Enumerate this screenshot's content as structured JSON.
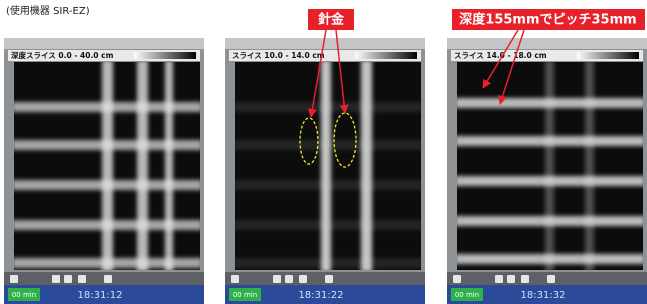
{
  "caption": "(使用機器 SIR-EZ)",
  "labels": {
    "wire": "針金",
    "pitch": "深度155mmでピッチ35mm"
  },
  "panels": [
    {
      "slice": "深度スライス 0.0 - 40.0 cm",
      "time": "18:31:12",
      "duration": "00 min"
    },
    {
      "slice": "スライス 10.0 - 14.0 cm",
      "time": "18:31:22",
      "duration": "00 min"
    },
    {
      "slice": "スライス 14.0 - 18.0 cm",
      "time": "18:31:32",
      "duration": "00 min"
    }
  ]
}
